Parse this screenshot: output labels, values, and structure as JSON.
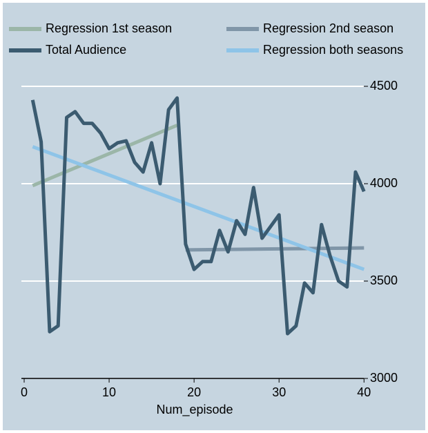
{
  "chart_data": {
    "type": "line",
    "xlabel": "Num_episode",
    "xlim": [
      -0.3,
      40.3
    ],
    "xticks": [
      0,
      10,
      20,
      30,
      40
    ],
    "ylim": [
      3000,
      4500
    ],
    "yticks": [
      3000,
      3500,
      4000,
      4500
    ],
    "grid": true,
    "legend": "top",
    "series": [
      {
        "name": "Regression 1st season",
        "color": "#9bb6a8",
        "x": [
          1,
          18
        ],
        "values": [
          3990,
          4300
        ]
      },
      {
        "name": "Regression 2nd season",
        "color": "#8096a8",
        "x": [
          19,
          40
        ],
        "values": [
          3660,
          3670
        ]
      },
      {
        "name": "Total Audience",
        "color": "#3b5b70",
        "x": [
          1,
          2,
          3,
          4,
          5,
          6,
          7,
          8,
          9,
          10,
          11,
          12,
          13,
          14,
          15,
          16,
          17,
          18,
          19,
          20,
          21,
          22,
          23,
          24,
          25,
          26,
          27,
          28,
          29,
          30,
          31,
          32,
          33,
          34,
          35,
          36,
          37,
          38,
          39,
          40
        ],
        "values": [
          4430,
          4215,
          3240,
          3270,
          4340,
          4370,
          4310,
          4310,
          4260,
          4180,
          4210,
          4220,
          4110,
          4060,
          4210,
          4000,
          4380,
          4440,
          3690,
          3560,
          3600,
          3600,
          3760,
          3650,
          3810,
          3740,
          3980,
          3720,
          3780,
          3840,
          3230,
          3270,
          3490,
          3440,
          3790,
          3630,
          3500,
          3470,
          4060,
          3960
        ]
      },
      {
        "name": "Regression both seasons",
        "color": "#8ec4e8",
        "x": [
          1,
          40
        ],
        "values": [
          4190,
          3560
        ]
      }
    ]
  }
}
